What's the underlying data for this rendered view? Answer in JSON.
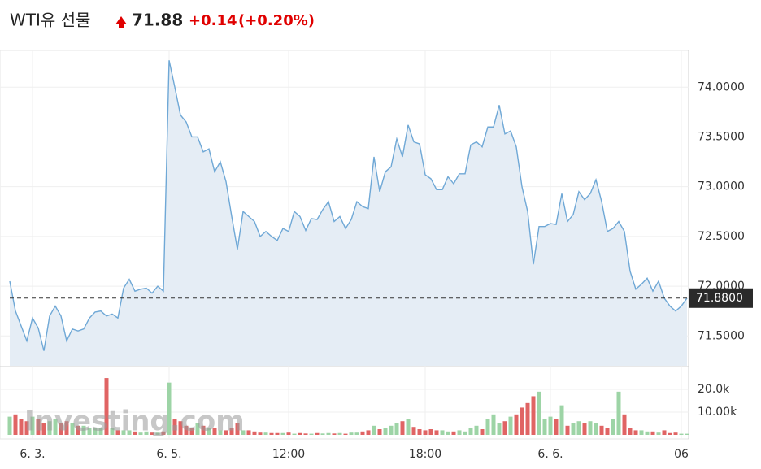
{
  "header": {
    "title": "WTI유 선물",
    "price": "71.88",
    "change": "+0.14",
    "change_pct": "(+0.20%)"
  },
  "watermark": "Investing.com",
  "chart_data": [
    {
      "type": "area",
      "color": "#6fa8d6",
      "fill": "#e5edf5",
      "categories": [
        null,
        null,
        null,
        null,
        "6. 3.",
        null,
        null,
        null,
        null,
        null,
        null,
        null,
        null,
        null,
        null,
        null,
        null,
        null,
        null,
        null,
        null,
        null,
        null,
        null,
        null,
        null,
        null,
        null,
        "6. 5.",
        null,
        null,
        null,
        null,
        null,
        null,
        null,
        null,
        null,
        null,
        null,
        null,
        null,
        null,
        null,
        null,
        null,
        null,
        null,
        null,
        "12:00",
        null,
        null,
        null,
        null,
        null,
        null,
        null,
        null,
        null,
        null,
        null,
        null,
        null,
        null,
        null,
        null,
        null,
        null,
        null,
        null,
        null,
        null,
        null,
        "18:00",
        null,
        null,
        null,
        null,
        null,
        null,
        null,
        null,
        null,
        null,
        null,
        null,
        null,
        null,
        null,
        null,
        null,
        null,
        null,
        null,
        null,
        "6. 6.",
        null,
        null,
        null,
        null,
        null,
        null,
        null,
        null,
        null,
        null,
        null,
        null,
        null,
        null,
        null,
        null,
        null,
        null,
        null,
        null,
        null,
        null,
        "06",
        null
      ],
      "values": [
        72.05,
        71.75,
        71.6,
        71.45,
        71.68,
        71.58,
        71.35,
        71.7,
        71.8,
        71.7,
        71.45,
        71.57,
        71.55,
        71.57,
        71.68,
        71.74,
        71.75,
        71.7,
        71.72,
        71.68,
        71.98,
        72.07,
        71.95,
        71.97,
        71.98,
        71.93,
        72.0,
        71.95,
        74.27,
        74.0,
        73.72,
        73.65,
        73.5,
        73.5,
        73.35,
        73.38,
        73.15,
        73.25,
        73.05,
        72.7,
        72.37,
        72.75,
        72.7,
        72.65,
        72.5,
        72.55,
        72.5,
        72.46,
        72.58,
        72.55,
        72.75,
        72.7,
        72.56,
        72.68,
        72.67,
        72.77,
        72.85,
        72.65,
        72.7,
        72.58,
        72.67,
        72.85,
        72.8,
        72.78,
        73.3,
        72.95,
        73.15,
        73.2,
        73.48,
        73.3,
        73.62,
        73.45,
        73.43,
        73.12,
        73.08,
        72.97,
        72.97,
        73.1,
        73.03,
        73.13,
        73.13,
        73.42,
        73.45,
        73.4,
        73.6,
        73.6,
        73.82,
        73.53,
        73.56,
        73.4,
        73.0,
        72.75,
        72.22,
        72.6,
        72.6,
        72.63,
        72.62,
        72.93,
        72.65,
        72.72,
        72.95,
        72.87,
        72.93,
        73.07,
        72.85,
        72.55,
        72.58,
        72.65,
        72.55,
        72.15,
        71.97,
        72.02,
        72.08,
        71.95,
        72.05,
        71.88,
        71.8,
        71.75,
        71.8,
        71.88
      ],
      "ylim": [
        71.2,
        74.37
      ],
      "yticks": [
        {
          "value": 71.5,
          "label": "71.5000"
        },
        {
          "value": 72,
          "label": "72.0000"
        },
        {
          "value": 72.5,
          "label": "72.5000"
        },
        {
          "value": 73,
          "label": "73.0000"
        },
        {
          "value": 73.5,
          "label": "73.5000"
        },
        {
          "value": 74,
          "label": "74.0000"
        }
      ],
      "grid": true,
      "last_value": 71.88,
      "last_label": "71.8800"
    },
    {
      "type": "bar",
      "up_color": "#9dd4a6",
      "down_color": "#e06464",
      "values": [
        8000,
        9000,
        7000,
        6000,
        8000,
        7000,
        5000,
        6000,
        7000,
        5000,
        6000,
        5000,
        4000,
        4000,
        3000,
        3000,
        3000,
        25000,
        3000,
        2000,
        2000,
        2000,
        1500,
        1000,
        1500,
        1000,
        1000,
        1500,
        23000,
        7000,
        6000,
        4000,
        3000,
        5000,
        4000,
        3000,
        3000,
        2000,
        2000,
        3000,
        5000,
        2000,
        2000,
        1500,
        1000,
        1000,
        800,
        800,
        800,
        1000,
        500,
        800,
        600,
        500,
        800,
        600,
        800,
        600,
        800,
        500,
        1000,
        1000,
        1500,
        2000,
        4000,
        2500,
        3000,
        4000,
        5000,
        6000,
        7000,
        3500,
        2500,
        2000,
        2500,
        2000,
        2000,
        1500,
        1500,
        2000,
        1500,
        3000,
        4000,
        2500,
        7000,
        9000,
        5000,
        6000,
        8000,
        9000,
        12000,
        14000,
        17000,
        19000,
        7000,
        8000,
        7000,
        13000,
        4000,
        5000,
        6000,
        5000,
        6000,
        5000,
        4000,
        3000,
        7000,
        19000,
        9000,
        3000,
        2000,
        2000,
        1500,
        1500,
        1000,
        2000,
        800,
        1000,
        500,
        500
      ],
      "ylim": [
        0,
        28600
      ],
      "yticks": [
        {
          "value": 10000,
          "label": "10.00k"
        },
        {
          "value": 20000,
          "label": "20.0k"
        }
      ]
    }
  ]
}
